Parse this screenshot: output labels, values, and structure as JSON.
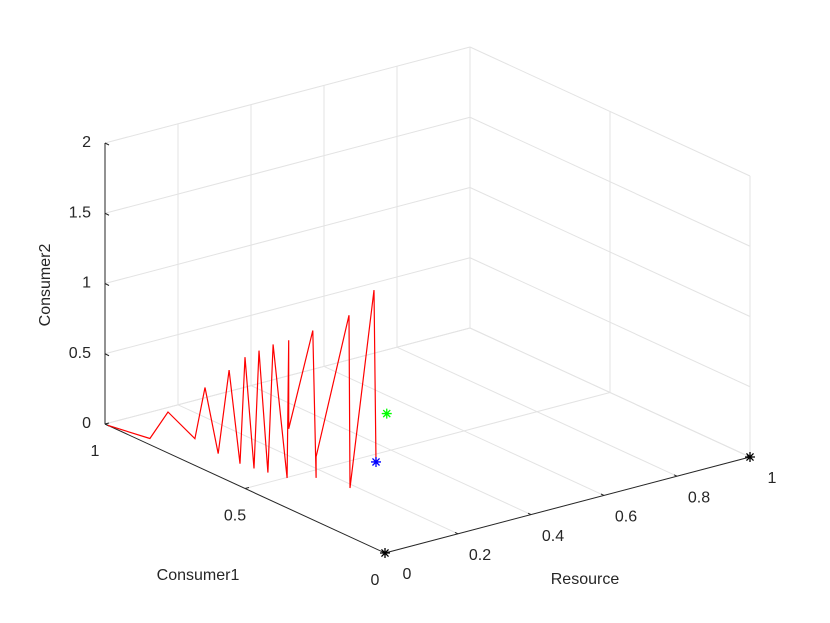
{
  "chart_data": {
    "type": "line3d",
    "xlabel": "Resource",
    "ylabel": "Consumer1",
    "zlabel": "Consumer2",
    "xlim": [
      0,
      1
    ],
    "xticks": [
      0,
      0.2,
      0.4,
      0.6,
      0.8,
      1
    ],
    "ylim": [
      0,
      1
    ],
    "yticks": [
      0,
      0.5,
      1
    ],
    "zlim": [
      0,
      2
    ],
    "zticks": [
      0,
      0.5,
      1,
      1.5,
      2
    ],
    "grid": true,
    "color": "#ff0000",
    "x": [
      0,
      0.018,
      0.049,
      0.096,
      0.089,
      0.08,
      0.08,
      0.08,
      0.082,
      0.086,
      0.089,
      0.095,
      0.1,
      0.113,
      0.116,
      0.116,
      0.158,
      0.164,
      0.164,
      0.183,
      0.185,
      0.295,
      0.329
    ],
    "y": [
      0.99,
      0.863,
      0.839,
      0.804,
      0.759,
      0.7,
      0.661,
      0.622,
      0.607,
      0.58,
      0.566,
      0.542,
      0.53,
      0.497,
      0.495,
      0.495,
      0.464,
      0.46,
      0.46,
      0.367,
      0.366,
      0.424,
      0.461
    ],
    "z": [
      0,
      0.01,
      0.2,
      0.01,
      0.42,
      0.01,
      0.64,
      0.01,
      0.78,
      0.01,
      0.86,
      0.01,
      0.93,
      0.0,
      0.98,
      0.35,
      1.05,
      0.0,
      0.15,
      1.23,
      0.0,
      1.28,
      0.0
    ],
    "markers": [
      {
        "x": 0,
        "y": 0,
        "z": 0,
        "color": "#000000"
      },
      {
        "x": 1,
        "y": 0,
        "z": 0,
        "color": "#000000"
      },
      {
        "x": 0.329,
        "y": 0.461,
        "z": 0,
        "color": "#0000ff"
      },
      {
        "x": 0.35,
        "y": 0.45,
        "z": 0.34,
        "color": "#00ff00"
      }
    ]
  }
}
